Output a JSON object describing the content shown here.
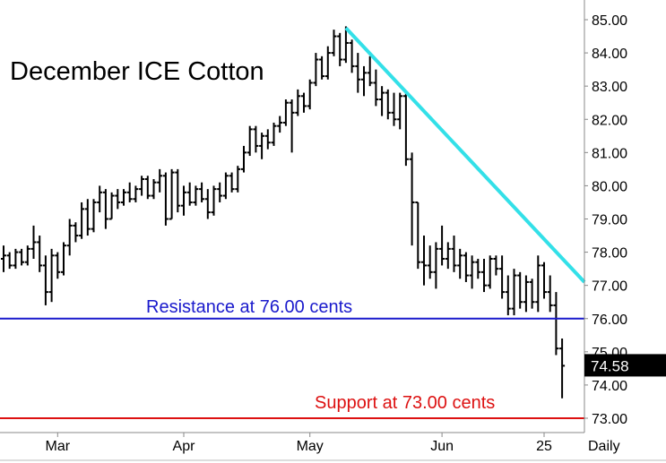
{
  "chart_data": {
    "type": "ohlc-bar",
    "title": "December ICE Cotton",
    "frequency_label": "Daily",
    "y_axis": {
      "position": "right",
      "ylim": [
        72.8,
        85.4
      ],
      "ticks": [
        "85.00",
        "84.00",
        "83.00",
        "82.00",
        "81.00",
        "80.00",
        "79.00",
        "78.00",
        "77.00",
        "76.00",
        "75.00",
        "74.00",
        "73.00"
      ]
    },
    "x_axis": {
      "ticks": [
        {
          "label": "Mar",
          "bar": 9
        },
        {
          "label": "Apr",
          "bar": 30
        },
        {
          "label": "May",
          "bar": 51
        },
        {
          "label": "Jun",
          "bar": 73
        },
        {
          "label": "25",
          "bar": 90
        }
      ]
    },
    "last_price": {
      "label": "74.58",
      "value": 74.58
    },
    "horizontal_lines": [
      {
        "name": "resistance",
        "value": 76.0,
        "label": "Resistance at 76.00 cents",
        "color": "#1a1acc"
      },
      {
        "name": "support",
        "value": 73.0,
        "label": "Support at 73.00 cents",
        "color": "#dd1111"
      }
    ],
    "trendline": {
      "start": {
        "bar": 57,
        "value": 84.75
      },
      "end": {
        "bar": 93,
        "value": 77.1
      },
      "color": "#33e0e8"
    },
    "bars": [
      [
        77.8,
        78.2,
        77.4,
        77.9
      ],
      [
        77.9,
        78.0,
        77.5,
        77.6
      ],
      [
        77.6,
        78.1,
        77.5,
        78.0
      ],
      [
        78.0,
        78.1,
        77.6,
        77.7
      ],
      [
        77.7,
        78.2,
        77.6,
        78.1
      ],
      [
        78.1,
        78.8,
        77.8,
        78.3
      ],
      [
        78.3,
        78.5,
        77.4,
        77.6
      ],
      [
        77.6,
        77.9,
        76.4,
        76.8
      ],
      [
        76.8,
        78.1,
        76.5,
        77.9
      ],
      [
        77.9,
        78.0,
        77.2,
        77.4
      ],
      [
        77.4,
        78.3,
        77.3,
        78.2
      ],
      [
        78.2,
        79.0,
        77.9,
        78.8
      ],
      [
        78.8,
        78.9,
        78.3,
        78.5
      ],
      [
        78.5,
        79.5,
        78.4,
        79.3
      ],
      [
        79.3,
        79.6,
        78.5,
        78.7
      ],
      [
        78.7,
        79.6,
        78.6,
        79.5
      ],
      [
        79.5,
        80.0,
        79.2,
        79.8
      ],
      [
        79.8,
        79.9,
        78.7,
        79.0
      ],
      [
        79.0,
        79.8,
        79.0,
        79.7
      ],
      [
        79.7,
        79.9,
        79.3,
        79.5
      ],
      [
        79.5,
        79.9,
        79.4,
        79.8
      ],
      [
        79.8,
        80.1,
        79.5,
        79.6
      ],
      [
        79.6,
        80.0,
        79.5,
        79.9
      ],
      [
        79.9,
        80.3,
        79.7,
        80.2
      ],
      [
        80.2,
        80.3,
        79.6,
        79.7
      ],
      [
        79.7,
        80.2,
        79.6,
        80.1
      ],
      [
        80.1,
        80.5,
        79.8,
        80.3
      ],
      [
        80.3,
        80.4,
        78.8,
        79.0
      ],
      [
        79.0,
        80.5,
        79.0,
        80.4
      ],
      [
        80.4,
        80.5,
        79.2,
        79.4
      ],
      [
        79.4,
        80.0,
        79.1,
        79.8
      ],
      [
        79.8,
        80.1,
        79.4,
        79.5
      ],
      [
        79.5,
        80.0,
        79.4,
        79.9
      ],
      [
        79.9,
        80.1,
        79.5,
        79.6
      ],
      [
        79.6,
        79.9,
        79.0,
        79.2
      ],
      [
        79.2,
        80.0,
        79.1,
        79.9
      ],
      [
        79.9,
        80.1,
        79.5,
        79.7
      ],
      [
        79.7,
        80.4,
        79.6,
        80.3
      ],
      [
        80.3,
        80.4,
        79.8,
        79.9
      ],
      [
        79.9,
        80.6,
        79.8,
        80.5
      ],
      [
        80.5,
        81.2,
        80.4,
        81.0
      ],
      [
        81.0,
        81.8,
        80.9,
        81.7
      ],
      [
        81.7,
        81.8,
        81.0,
        81.2
      ],
      [
        81.2,
        81.6,
        80.8,
        81.5
      ],
      [
        81.5,
        81.7,
        81.1,
        81.3
      ],
      [
        81.3,
        81.9,
        81.2,
        81.8
      ],
      [
        81.8,
        82.1,
        81.6,
        81.9
      ],
      [
        81.9,
        82.6,
        81.8,
        82.5
      ],
      [
        82.5,
        82.6,
        81.0,
        82.2
      ],
      [
        82.2,
        82.9,
        82.1,
        82.7
      ],
      [
        82.7,
        82.8,
        82.2,
        82.4
      ],
      [
        82.4,
        83.2,
        82.3,
        83.1
      ],
      [
        83.1,
        84.0,
        83.0,
        83.8
      ],
      [
        83.8,
        83.9,
        83.2,
        83.3
      ],
      [
        83.3,
        84.2,
        83.2,
        84.0
      ],
      [
        84.0,
        84.7,
        83.9,
        84.5
      ],
      [
        84.5,
        84.6,
        83.6,
        83.8
      ],
      [
        83.8,
        84.8,
        83.7,
        84.3
      ],
      [
        84.3,
        84.4,
        83.4,
        83.6
      ],
      [
        83.6,
        84.0,
        82.8,
        83.2
      ],
      [
        83.2,
        83.6,
        82.7,
        83.4
      ],
      [
        83.4,
        83.9,
        83.0,
        83.1
      ],
      [
        83.1,
        83.5,
        82.4,
        82.6
      ],
      [
        82.6,
        83.0,
        82.1,
        82.8
      ],
      [
        82.8,
        82.9,
        82.0,
        82.2
      ],
      [
        82.2,
        82.8,
        81.8,
        82.0
      ],
      [
        82.0,
        82.8,
        81.7,
        82.7
      ],
      [
        82.7,
        82.8,
        80.6,
        80.8
      ],
      [
        80.8,
        81.0,
        78.2,
        79.5
      ],
      [
        79.5,
        79.5,
        77.5,
        77.7
      ],
      [
        77.7,
        78.5,
        77.0,
        77.6
      ],
      [
        77.6,
        78.2,
        77.2,
        77.4
      ],
      [
        77.4,
        78.3,
        76.9,
        78.1
      ],
      [
        78.1,
        78.8,
        77.6,
        77.8
      ],
      [
        77.8,
        78.3,
        77.5,
        78.1
      ],
      [
        78.1,
        78.5,
        77.4,
        77.6
      ],
      [
        77.6,
        78.1,
        77.2,
        77.9
      ],
      [
        77.9,
        78.0,
        77.1,
        77.3
      ],
      [
        77.3,
        77.9,
        76.9,
        77.7
      ],
      [
        77.7,
        77.8,
        77.2,
        77.4
      ],
      [
        77.4,
        77.8,
        76.8,
        77.0
      ],
      [
        77.0,
        77.9,
        76.9,
        77.8
      ],
      [
        77.8,
        77.9,
        77.3,
        77.5
      ],
      [
        77.5,
        77.9,
        76.6,
        76.8
      ],
      [
        76.8,
        77.3,
        76.1,
        76.3
      ],
      [
        76.3,
        77.5,
        76.1,
        77.3
      ],
      [
        77.3,
        77.4,
        76.3,
        76.5
      ],
      [
        76.5,
        77.3,
        76.2,
        77.1
      ],
      [
        77.1,
        77.2,
        76.3,
        76.5
      ],
      [
        76.5,
        77.9,
        76.2,
        77.6
      ],
      [
        77.6,
        77.7,
        76.6,
        76.8
      ],
      [
        76.8,
        77.3,
        76.2,
        76.4
      ],
      [
        76.4,
        76.8,
        74.9,
        75.1
      ],
      [
        75.1,
        75.4,
        73.6,
        74.58
      ]
    ]
  }
}
